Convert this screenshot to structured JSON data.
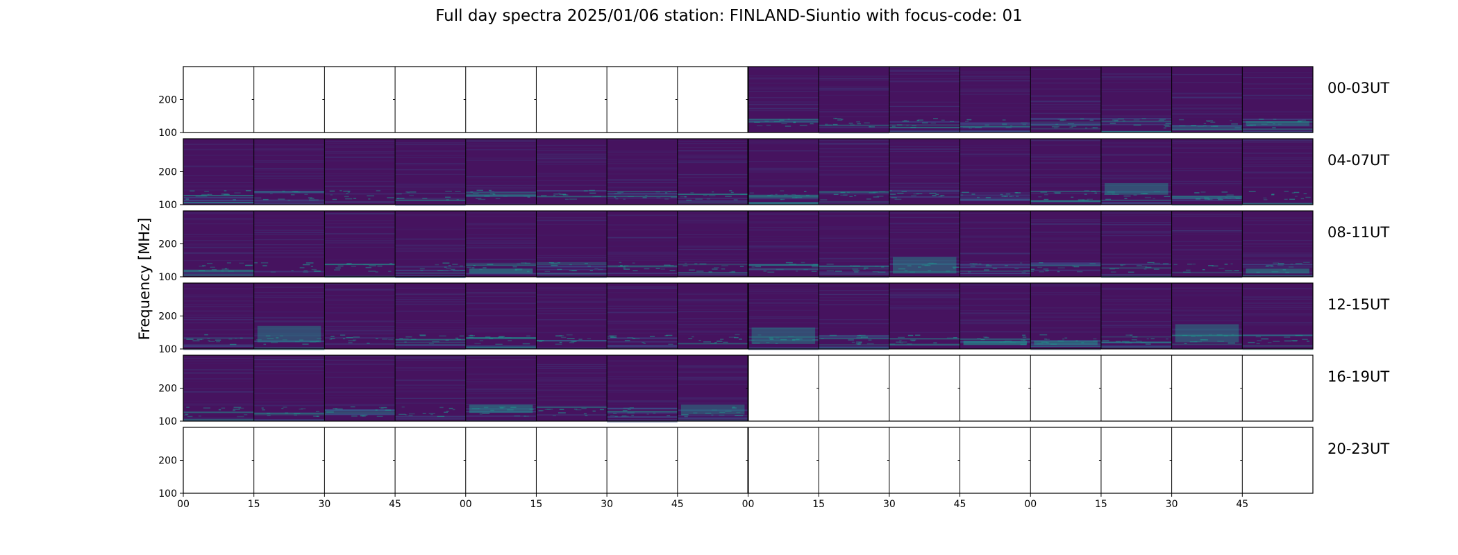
{
  "figure": {
    "title": "Full day spectra 2025/01/06 station: FINLAND-Siuntio with focus-code: 01",
    "ylabel": "Frequency [MHz]"
  },
  "colors": {
    "background_spectrum": "#46135f",
    "mid_spectrum": "#3b528b",
    "bright_spectrum": "#21918c",
    "empty_panel": "#ffffff",
    "frame": "#000000"
  },
  "chart_data": {
    "type": "heatmap",
    "title": "Full day spectra 2025/01/06 station: FINLAND-Siuntio with focus-code: 01",
    "ylabel": "Frequency [MHz]",
    "xlabel": "",
    "ylim": [
      100,
      300
    ],
    "yticks": [
      100,
      200
    ],
    "x_tick_labels": [
      "00",
      "15",
      "30",
      "45",
      "00",
      "15",
      "30",
      "45",
      "00",
      "15",
      "30",
      "45",
      "00",
      "15",
      "30",
      "45"
    ],
    "panel_minutes": 15,
    "panels_per_row": 16,
    "rows": [
      {
        "label": "00-03UT",
        "has_data": [
          false,
          false,
          false,
          false,
          false,
          false,
          false,
          false,
          true,
          true,
          true,
          true,
          true,
          true,
          true,
          true
        ]
      },
      {
        "label": "04-07UT",
        "has_data": [
          true,
          true,
          true,
          true,
          true,
          true,
          true,
          true,
          true,
          true,
          true,
          true,
          true,
          true,
          true,
          true
        ]
      },
      {
        "label": "08-11UT",
        "has_data": [
          true,
          true,
          true,
          true,
          true,
          true,
          true,
          true,
          true,
          true,
          true,
          true,
          true,
          true,
          true,
          true
        ]
      },
      {
        "label": "12-15UT",
        "has_data": [
          true,
          true,
          true,
          true,
          true,
          true,
          true,
          true,
          true,
          true,
          true,
          true,
          true,
          true,
          true,
          true
        ]
      },
      {
        "label": "16-19UT",
        "has_data": [
          true,
          true,
          true,
          true,
          true,
          true,
          true,
          true,
          false,
          false,
          false,
          false,
          false,
          false,
          false,
          false
        ]
      },
      {
        "label": "20-23UT",
        "has_data": [
          false,
          false,
          false,
          false,
          false,
          false,
          false,
          false,
          false,
          false,
          false,
          false,
          false,
          false,
          false,
          false
        ]
      }
    ],
    "bright_features": [
      {
        "row": 2,
        "panel": 4,
        "freq_low": 110,
        "freq_high": 125,
        "intensity": 0.9
      },
      {
        "row": 2,
        "panel": 10,
        "freq_low": 110,
        "freq_high": 160,
        "intensity": 0.6
      },
      {
        "row": 2,
        "panel": 15,
        "freq_low": 110,
        "freq_high": 125,
        "intensity": 0.8
      },
      {
        "row": 3,
        "panel": 1,
        "freq_low": 120,
        "freq_high": 170,
        "intensity": 0.55
      },
      {
        "row": 3,
        "panel": 8,
        "freq_low": 115,
        "freq_high": 165,
        "intensity": 0.55
      },
      {
        "row": 3,
        "panel": 11,
        "freq_low": 112,
        "freq_high": 125,
        "intensity": 1.0
      },
      {
        "row": 3,
        "panel": 12,
        "freq_low": 112,
        "freq_high": 125,
        "intensity": 0.7
      },
      {
        "row": 3,
        "panel": 14,
        "freq_low": 120,
        "freq_high": 175,
        "intensity": 0.55
      },
      {
        "row": 4,
        "panel": 4,
        "freq_low": 125,
        "freq_high": 150,
        "intensity": 0.7
      },
      {
        "row": 1,
        "panel": 13,
        "freq_low": 130,
        "freq_high": 165,
        "intensity": 0.6
      },
      {
        "row": 0,
        "panel": 15,
        "freq_low": 120,
        "freq_high": 135,
        "intensity": 0.6
      },
      {
        "row": 4,
        "panel": 7,
        "freq_low": 120,
        "freq_high": 150,
        "intensity": 0.5
      }
    ]
  }
}
